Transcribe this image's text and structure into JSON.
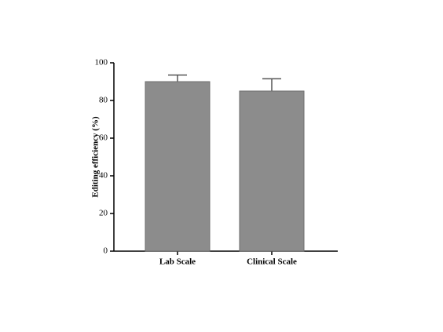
{
  "chart_data": {
    "type": "bar",
    "y_label": "Editing efficiency (%)",
    "categories": [
      "Lab Scale",
      "Clinical Scale"
    ],
    "values": [
      90,
      85
    ],
    "errors": [
      3.5,
      6.5
    ],
    "color": "#8c8c8c",
    "error_color": "#555555",
    "ylim": [
      0,
      100
    ],
    "yticks": [
      0,
      20,
      40,
      60,
      80,
      100
    ],
    "grid": false
  }
}
